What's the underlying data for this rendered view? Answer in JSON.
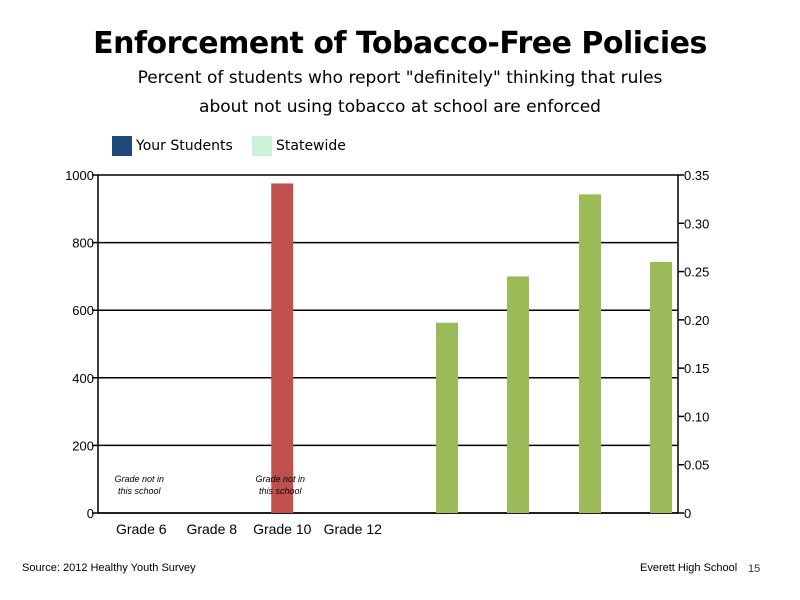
{
  "slide": {
    "title": "Enforcement of Tobacco-Free Policies",
    "subtitle_line1": "Percent of students who report \"definitely\" thinking that rules",
    "subtitle_line2": "about not using tobacco at school are enforced",
    "source": "Source: 2012 Healthy Youth Survey",
    "school": "Everett High School",
    "page_number": "15"
  },
  "chart_data": {
    "type": "bar",
    "title": "Enforcement of Tobacco-Free Policies",
    "categories": [
      "Grade 6",
      "Grade 8",
      "Grade 10",
      "Grade 12"
    ],
    "legend": [
      {
        "name": "Your Students",
        "color": "#1f497d"
      },
      {
        "name": "Statewide",
        "color": "#ccf2d9"
      }
    ],
    "legend_position": "top-left",
    "y_left": {
      "min": 0,
      "max": 1000,
      "ticks": [
        0,
        200,
        400,
        600,
        800,
        1000
      ]
    },
    "y_right": {
      "min": 0,
      "max": 0.35,
      "ticks": [
        "0",
        "0.05",
        "0.10",
        "0.15",
        "0.20",
        "0.25",
        "0.30",
        "0.35"
      ]
    },
    "gridlines": true,
    "red_bars": [
      {
        "category_index": 2,
        "value": 975,
        "axis": "left",
        "color": "#c0504d"
      }
    ],
    "green_bars": [
      {
        "value": 0.197,
        "axis": "right",
        "color": "#9bbb59"
      },
      {
        "value": 0.245,
        "axis": "right",
        "color": "#9bbb59"
      },
      {
        "value": 0.33,
        "axis": "right",
        "color": "#9bbb59"
      },
      {
        "value": 0.26,
        "axis": "right",
        "color": "#9bbb59"
      }
    ],
    "annotations": [
      {
        "category_index": 0,
        "line1": "Grade not in",
        "line2": "this school"
      },
      {
        "category_index": 2,
        "line1": "Grade not in",
        "line2": "this school"
      }
    ]
  }
}
